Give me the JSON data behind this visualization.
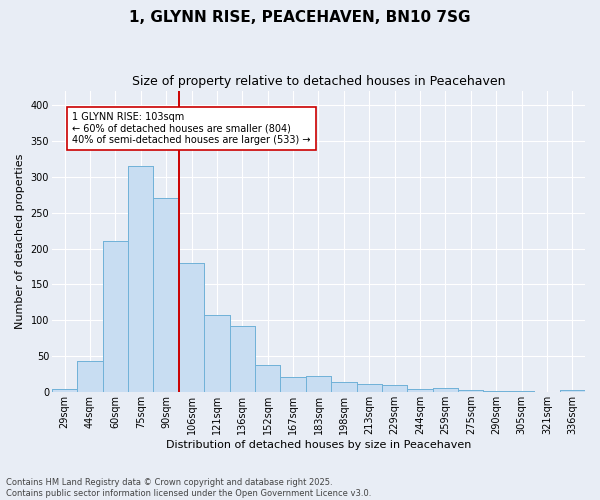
{
  "title_line1": "1, GLYNN RISE, PEACEHAVEN, BN10 7SG",
  "title_line2": "Size of property relative to detached houses in Peacehaven",
  "xlabel": "Distribution of detached houses by size in Peacehaven",
  "ylabel": "Number of detached properties",
  "categories": [
    "29sqm",
    "44sqm",
    "60sqm",
    "75sqm",
    "90sqm",
    "106sqm",
    "121sqm",
    "136sqm",
    "152sqm",
    "167sqm",
    "183sqm",
    "198sqm",
    "213sqm",
    "229sqm",
    "244sqm",
    "259sqm",
    "275sqm",
    "290sqm",
    "305sqm",
    "321sqm",
    "336sqm"
  ],
  "values": [
    5,
    44,
    210,
    315,
    270,
    180,
    108,
    92,
    38,
    21,
    22,
    14,
    12,
    10,
    5,
    6,
    3,
    2,
    1,
    0,
    3
  ],
  "bar_color": "#c8ddf2",
  "bar_edge_color": "#6aaed6",
  "vline_color": "#cc0000",
  "annotation_text": "1 GLYNN RISE: 103sqm\n← 60% of detached houses are smaller (804)\n40% of semi-detached houses are larger (533) →",
  "annotation_box_color": "#ffffff",
  "annotation_box_edge_color": "#cc0000",
  "ylim": [
    0,
    420
  ],
  "yticks": [
    0,
    50,
    100,
    150,
    200,
    250,
    300,
    350,
    400
  ],
  "background_color": "#e8edf5",
  "grid_color": "#ffffff",
  "footer_line1": "Contains HM Land Registry data © Crown copyright and database right 2025.",
  "footer_line2": "Contains public sector information licensed under the Open Government Licence v3.0.",
  "title_fontsize": 11,
  "subtitle_fontsize": 9,
  "axis_label_fontsize": 8,
  "tick_fontsize": 7,
  "annotation_fontsize": 7,
  "footer_fontsize": 6
}
